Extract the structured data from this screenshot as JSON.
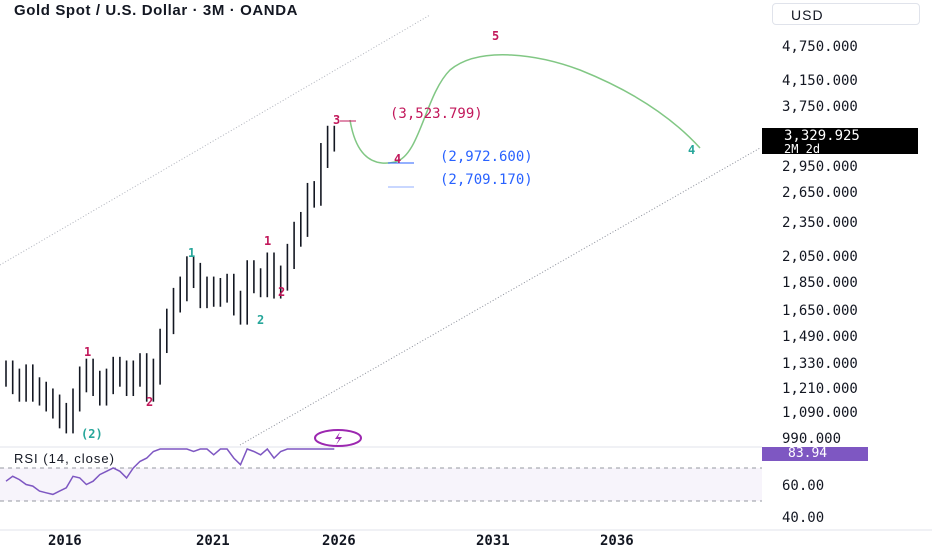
{
  "header": {
    "title": "Gold Spot / U.S. Dollar · 3M · OANDA",
    "currency": "USD"
  },
  "price_axis": {
    "labels": [
      "4,750.000",
      "4,150.000",
      "3,750.000",
      "2,950.000",
      "2,650.000",
      "2,350.000",
      "2,050.000",
      "1,850.000",
      "1,650.000",
      "1,490.000",
      "1,330.000",
      "1,210.000",
      "1,090.000",
      "990.000"
    ]
  },
  "current_price": {
    "value": "3,329.925",
    "countdown": "2M 2d"
  },
  "annotations": {
    "target_label": "(3,523.799)",
    "support_1": "(2,972.600)",
    "support_2": "(2,709.170)"
  },
  "waves": {
    "w2_paren": "(2)",
    "w1_a": "1",
    "w2_a": "2",
    "w1_b": "1",
    "w2_b": "2",
    "w1_c": "1",
    "w2_c": "2",
    "w3": "3",
    "w4": "4",
    "w5": "5",
    "w4_proj": "4"
  },
  "colors": {
    "wave_pink": "#c2185b",
    "wave_green": "#26a69a",
    "projection_green": "#81c784",
    "support_blue": "#2962ff",
    "rsi_purple": "#7e57c2"
  },
  "rsi": {
    "label": "RSI (14, close)",
    "value": "83.94",
    "axis": [
      "60.00",
      "40.00"
    ],
    "icon": "lightning-icon"
  },
  "time_axis": {
    "labels": [
      "2016",
      "2021",
      "2026",
      "2031",
      "2036"
    ]
  },
  "chart_data": {
    "type": "candlestick-bars",
    "symbol": "XAUUSD",
    "timeframe": "3M",
    "bars_close_approx": [
      1280,
      1240,
      1200,
      1260,
      1200,
      1180,
      1150,
      1120,
      1080,
      1060,
      1150,
      1250,
      1290,
      1230,
      1180,
      1240,
      1300,
      1280,
      1230,
      1280,
      1320,
      1200,
      1290,
      1460,
      1580,
      1720,
      1800,
      1950,
      1900,
      1750,
      1800,
      1760,
      1790,
      1820,
      1700,
      1640,
      1920,
      1860,
      1830,
      1980,
      1820,
      1880,
      2050,
      2240,
      2330,
      2620,
      2640,
      3080,
      3300,
      3290
    ],
    "projection": [
      3523.799,
      2972.6,
      4900,
      2972.6
    ],
    "rsi_values_approx": [
      52,
      55,
      53,
      50,
      49,
      46,
      45,
      44,
      46,
      48,
      55,
      54,
      50,
      52,
      56,
      58,
      60,
      58,
      54,
      60,
      64,
      66,
      70,
      78,
      84,
      82,
      76,
      72,
      70,
      72,
      74,
      68,
      72,
      74,
      66,
      62,
      72,
      70,
      68,
      72,
      66,
      70,
      76,
      80,
      82,
      84,
      85,
      86,
      88,
      88
    ]
  }
}
